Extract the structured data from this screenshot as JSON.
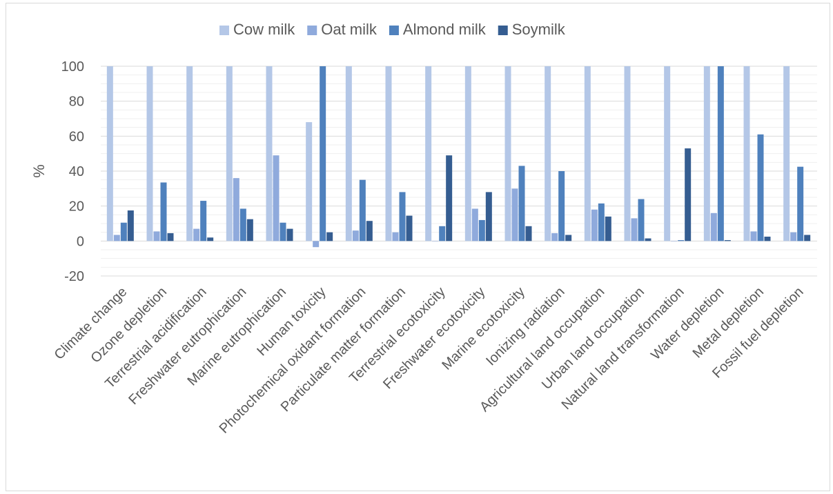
{
  "chart_data": {
    "type": "bar",
    "title": "",
    "xlabel": "",
    "ylabel": "%",
    "ylim": [
      -20,
      100
    ],
    "yticks": [
      -20,
      0,
      20,
      40,
      60,
      80,
      100
    ],
    "grid": true,
    "legend_position": "top",
    "categories": [
      "Climate change",
      "Ozone depletion",
      "Terrestrial acidification",
      "Freshwater eutrophication",
      "Marine eutrophication",
      "Human toxicity",
      "Photochemical oxidant formation",
      "Particulate matter formation",
      "Terrestrial ecotoxicity",
      "Freshwater ecotoxicity",
      "Marine ecotoxicity",
      "Ionizing radiation",
      "Agricultural land occupation",
      "Urban land occupation",
      "Natural land transformation",
      "Water depletion",
      "Metal depletion",
      "Fossil fuel depletion"
    ],
    "series": [
      {
        "name": "Cow milk",
        "color": "#b4c7e7",
        "values": [
          100,
          100,
          100,
          100,
          100,
          68,
          100,
          100,
          100,
          100,
          100,
          100,
          100,
          100,
          100,
          100,
          100,
          100
        ]
      },
      {
        "name": "Oat milk",
        "color": "#8faadc",
        "values": [
          3.5,
          5.5,
          7,
          36,
          49,
          -3.5,
          6,
          5,
          0,
          18.5,
          30,
          4.5,
          18,
          13,
          0,
          16,
          5.5,
          5
        ]
      },
      {
        "name": "Almond milk",
        "color": "#4f81bd",
        "values": [
          10.5,
          33.5,
          23,
          18.5,
          10.5,
          100,
          35,
          28,
          8.5,
          12,
          43,
          40,
          21.5,
          24,
          0.5,
          100,
          61,
          42.5
        ]
      },
      {
        "name": "Soymilk",
        "color": "#355d91",
        "values": [
          17.5,
          4.5,
          2,
          12.5,
          7,
          5,
          11.5,
          14.5,
          49,
          28,
          8.5,
          3.5,
          14,
          1.5,
          53,
          0.5,
          2.5,
          3.5
        ]
      }
    ]
  }
}
